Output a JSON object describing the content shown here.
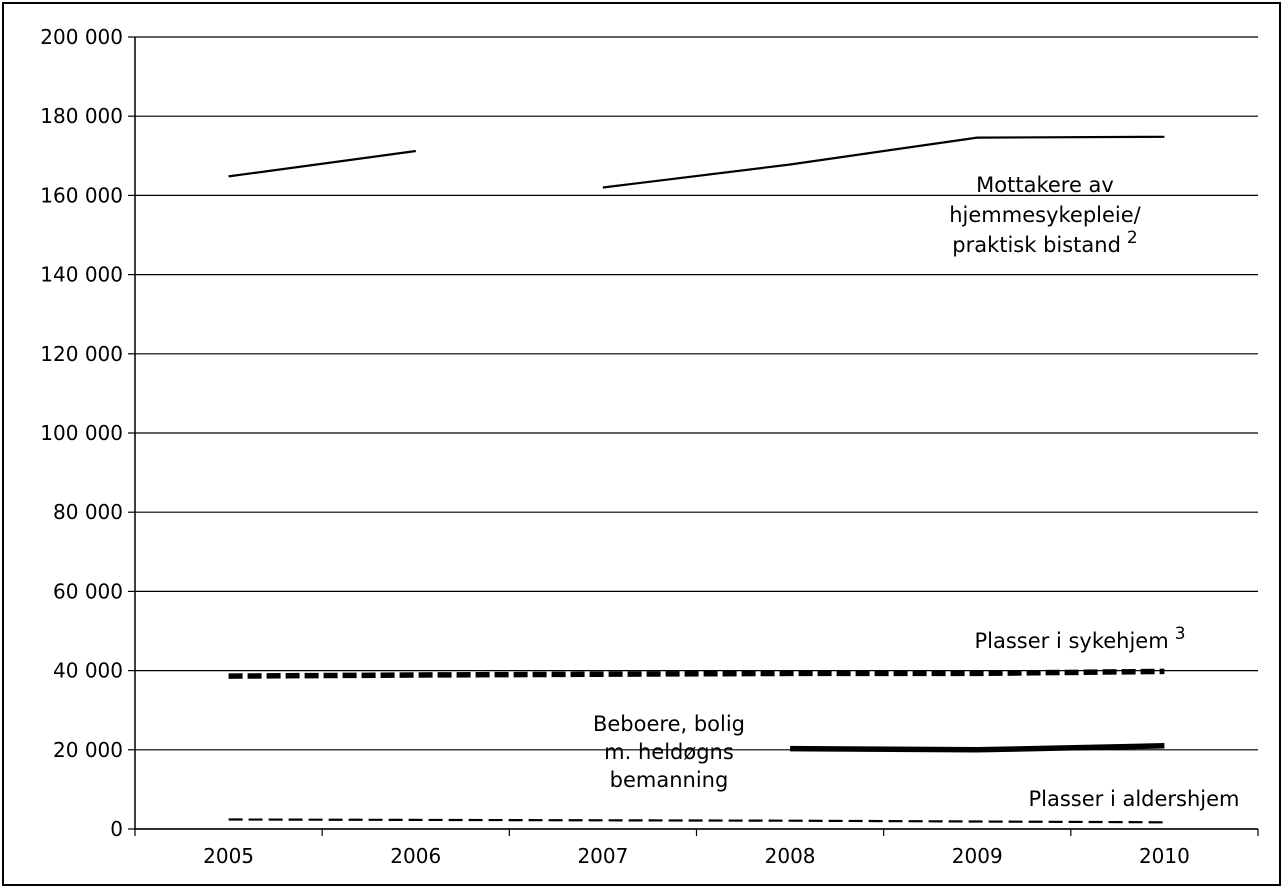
{
  "chart_data": {
    "type": "line",
    "title": "",
    "xlabel": "",
    "ylabel": "",
    "categories": [
      "2005",
      "2006",
      "2007",
      "2008",
      "2009",
      "2010"
    ],
    "ylim": [
      0,
      200000
    ],
    "yticks": [
      "0",
      "20 000",
      "40 000",
      "60 000",
      "80 000",
      "100 000",
      "120 000",
      "140 000",
      "160 000",
      "180 000",
      "200 000"
    ],
    "grid": "horizontal",
    "legend": "none",
    "series": [
      {
        "name": "Mottakere av hjemmesykepleie/ praktisk bistand 2",
        "label_lines": [
          "Mottakere av",
          "hjemmesykepleie/",
          "praktisk bistand"
        ],
        "label_sup": "2",
        "segments": [
          [
            [
              "2005",
              164800
            ],
            [
              "2006",
              171200
            ]
          ],
          [
            [
              "2007",
              162000
            ],
            [
              "2008",
              167800
            ],
            [
              "2009",
              174600
            ],
            [
              "2010",
              174800
            ]
          ]
        ],
        "style": "solid-thin"
      },
      {
        "name": "Plasser i sykehjem 3",
        "label_lines": [
          "Plasser i sykehjem"
        ],
        "label_sup": "3",
        "segments": [
          [
            [
              "2005",
              38600
            ],
            [
              "2006",
              38900
            ],
            [
              "2007",
              39100
            ],
            [
              "2008",
              39300
            ],
            [
              "2009",
              39300
            ],
            [
              "2010",
              39800
            ]
          ]
        ],
        "style": "dashed-thick"
      },
      {
        "name": "Beboere, bolig m. heldøgns bemanning",
        "label_lines": [
          "Beboere, bolig",
          "m. heldøgns",
          "bemanning"
        ],
        "label_sup": "",
        "segments": [
          [
            [
              "2008",
              20300
            ],
            [
              "2009",
              20000
            ],
            [
              "2010",
              21000
            ]
          ]
        ],
        "style": "solid-thick"
      },
      {
        "name": "Plasser i aldershjem",
        "label_lines": [
          "Plasser i aldershjem"
        ],
        "label_sup": "",
        "segments": [
          [
            [
              "2005",
              2400
            ],
            [
              "2006",
              2300
            ],
            [
              "2007",
              2200
            ],
            [
              "2008",
              2100
            ],
            [
              "2009",
              1900
            ],
            [
              "2010",
              1700
            ]
          ]
        ],
        "style": "dashed-thin"
      }
    ]
  }
}
